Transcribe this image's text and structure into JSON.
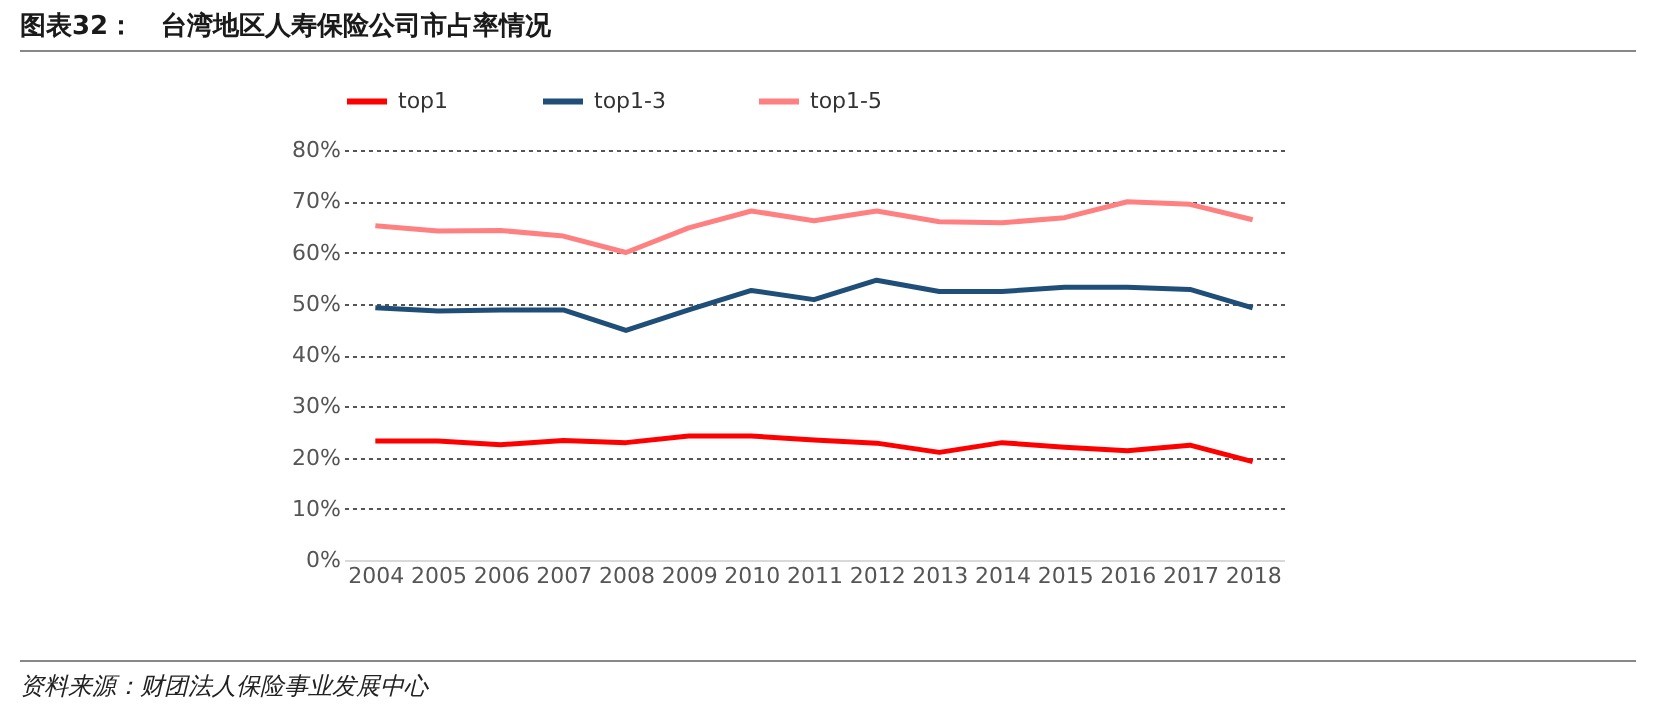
{
  "chart_data": {
    "type": "line",
    "title": "图表32：   台湾地区人寿保险公司市占率情况",
    "annotations": [
      "资料来源：财团法人保险事业发展中心"
    ],
    "categories": [
      "2004",
      "2005",
      "2006",
      "2007",
      "2008",
      "2009",
      "2010",
      "2011",
      "2012",
      "2013",
      "2014",
      "2015",
      "2016",
      "2017",
      "2018"
    ],
    "series": [
      {
        "name": "top1",
        "color": "#ff0000",
        "values": [
          23.2,
          23.2,
          22.5,
          23.3,
          22.9,
          24.2,
          24.2,
          23.4,
          22.8,
          21.0,
          22.9,
          22.0,
          21.3,
          22.4,
          19.2
        ]
      },
      {
        "name": "top1-3",
        "color": "#1f4e79",
        "values": [
          49.2,
          48.6,
          48.8,
          48.8,
          44.8,
          48.8,
          52.6,
          50.8,
          54.6,
          52.4,
          52.4,
          53.2,
          53.2,
          52.8,
          49.2
        ]
      },
      {
        "name": "top1-5",
        "color": "#ff8080",
        "values": [
          65.2,
          64.2,
          64.3,
          63.2,
          60.0,
          64.8,
          68.1,
          66.2,
          68.1,
          66.0,
          65.8,
          66.8,
          69.9,
          69.4,
          66.4
        ]
      }
    ],
    "ylim": [
      0,
      80
    ],
    "yticks": [
      {
        "value": 0,
        "label": "0%"
      },
      {
        "value": 10,
        "label": "10%"
      },
      {
        "value": 20,
        "label": "20%"
      },
      {
        "value": 30,
        "label": "30%"
      },
      {
        "value": 40,
        "label": "40%"
      },
      {
        "value": 50,
        "label": "50%"
      },
      {
        "value": 60,
        "label": "60%"
      },
      {
        "value": 70,
        "label": "70%"
      },
      {
        "value": 80,
        "label": "80%"
      }
    ],
    "grid": "y",
    "legend": "top",
    "line_style": "solid",
    "marker": "none"
  }
}
